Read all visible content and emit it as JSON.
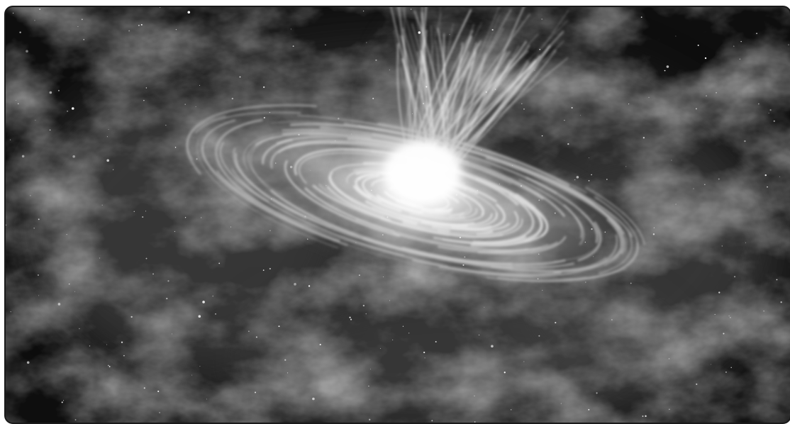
{
  "image": {
    "subject": "black-hole-accretion-disk-icon",
    "palette": {
      "space": "#0d0d0d",
      "nebula": "#5a5a5a",
      "glow": "#ffffff",
      "frame": "#1a1a1a"
    }
  }
}
